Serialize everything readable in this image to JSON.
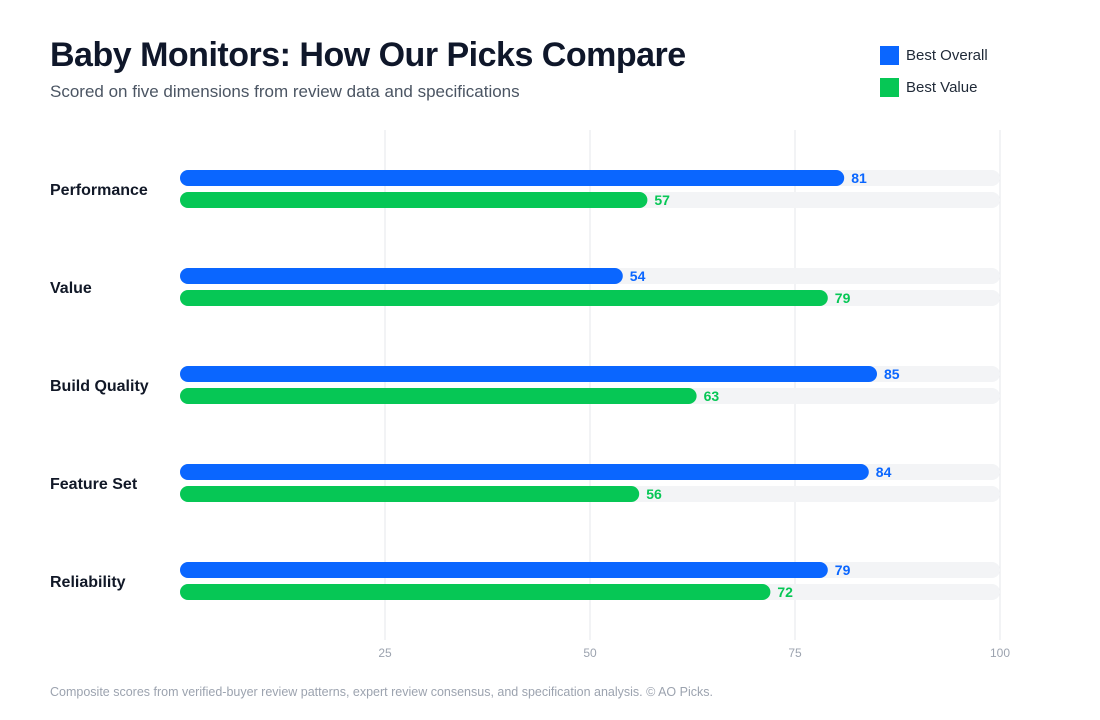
{
  "header": {
    "title": "Baby Monitors: How Our Picks Compare",
    "subtitle": "Scored on five dimensions from review data and specifications"
  },
  "legend": {
    "items": [
      {
        "label": "Best Overall",
        "color": "#0a66ff"
      },
      {
        "label": "Best Value",
        "color": "#06c755"
      }
    ]
  },
  "footnote": "Composite scores from verified-buyer review patterns, expert review consensus, and specification analysis. © AO Picks.",
  "chart_data": {
    "type": "bar",
    "orientation": "horizontal",
    "categories": [
      "Performance",
      "Value",
      "Build Quality",
      "Feature Set",
      "Reliability"
    ],
    "series": [
      {
        "name": "Best Overall",
        "values": [
          81,
          54,
          85,
          84,
          79
        ],
        "color": "#0a66ff"
      },
      {
        "name": "Best Value",
        "values": [
          57,
          79,
          63,
          56,
          72
        ],
        "color": "#06c755"
      }
    ],
    "xlim": [
      0,
      100
    ],
    "xticks": [
      25,
      50,
      75,
      100
    ],
    "grid": true,
    "legend_position": "top-right",
    "data_labels": true,
    "track_color": "#f3f4f6",
    "grid_color": "#e5e7eb"
  }
}
